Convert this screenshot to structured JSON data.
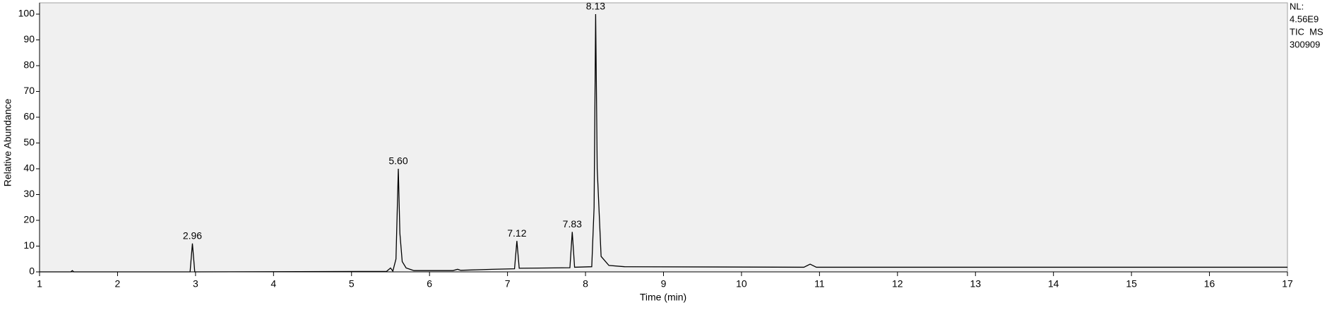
{
  "chart_data": {
    "type": "line",
    "xlabel": "Time (min)",
    "ylabel": "Relative Abundance",
    "xlim": [
      1,
      17
    ],
    "xticks": [
      1,
      2,
      3,
      4,
      5,
      6,
      7,
      8,
      9,
      10,
      11,
      12,
      13,
      14,
      15,
      16,
      17
    ],
    "ylim": [
      0,
      100
    ],
    "yticks": [
      0,
      10,
      20,
      30,
      40,
      50,
      60,
      70,
      80,
      90,
      100
    ],
    "x": [
      1,
      1.4,
      1.42,
      1.44,
      2.93,
      2.96,
      2.99,
      5.45,
      5.5,
      5.53,
      5.57,
      5.6,
      5.62,
      5.65,
      5.7,
      5.8,
      6.3,
      6.36,
      6.4,
      6.8,
      7.09,
      7.12,
      7.15,
      7.5,
      7.8,
      7.83,
      7.86,
      8.08,
      8.11,
      8.13,
      8.15,
      8.2,
      8.3,
      8.5,
      10.8,
      10.88,
      10.96,
      17
    ],
    "series": [
      {
        "color": "#000000",
        "values": [
          0,
          0,
          0.5,
          0,
          0,
          11,
          0,
          0.2,
          1.5,
          0.3,
          5,
          40,
          15,
          4,
          1.5,
          0.5,
          0.5,
          1,
          0.6,
          1,
          1.2,
          12,
          1.4,
          1.5,
          1.6,
          15.5,
          1.8,
          2,
          25,
          100,
          40,
          6,
          2.5,
          2,
          1.8,
          3,
          1.8,
          1.8
        ]
      }
    ],
    "peaks": [
      {
        "x": 2.96,
        "y": 11,
        "label": "2.96"
      },
      {
        "x": 5.6,
        "y": 40,
        "label": "5.60"
      },
      {
        "x": 7.12,
        "y": 12,
        "label": "7.12"
      },
      {
        "x": 7.83,
        "y": 15.5,
        "label": "7.83"
      },
      {
        "x": 8.13,
        "y": 100,
        "label": "8.13"
      }
    ],
    "side_labels": [
      "NL:",
      "4.56E9",
      "TIC  MS",
      "300909"
    ]
  }
}
